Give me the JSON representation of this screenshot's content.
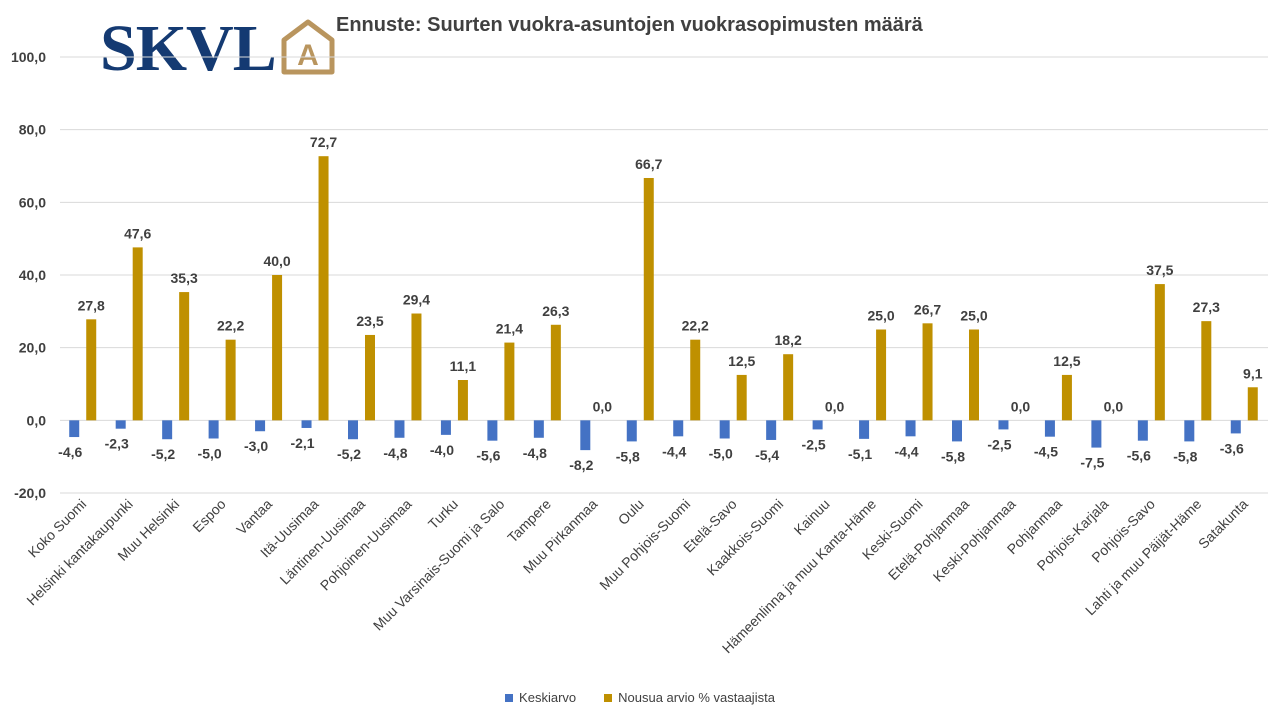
{
  "logo": {
    "text": "SKVL",
    "mark_letter": "A"
  },
  "colors": {
    "series1": "#4472c4",
    "series2": "#bf9000",
    "grid": "#d9d9d9",
    "logo_blue": "#143a72",
    "logo_gold": "#b9955e"
  },
  "chart_data": {
    "type": "bar",
    "title": "Ennuste: Suurten vuokra-asuntojen vuokrasopimusten määrä",
    "ylim": [
      -20,
      100
    ],
    "yticks": [
      -20,
      0,
      20,
      40,
      60,
      80,
      100
    ],
    "ytick_labels": [
      "-20,0",
      "0,0",
      "20,0",
      "40,0",
      "60,0",
      "80,0",
      "100,0"
    ],
    "legend_position": "bottom",
    "categories": [
      "Koko Suomi",
      "Helsinki kantakaupunki",
      "Muu Helsinki",
      "Espoo",
      "Vantaa",
      "Itä-Uusimaa",
      "Läntinen-Uusimaa",
      "Pohjoinen-Uusimaa",
      "Turku",
      "Muu Varsinais-Suomi ja Salo",
      "Tampere",
      "Muu Pirkanmaa",
      "Oulu",
      "Muu Pohjois-Suomi",
      "Etelä-Savo",
      "Kaakkois-Suomi",
      "Kainuu",
      "Hämeenlinna ja muu Kanta-Häme",
      "Keski-Suomi",
      "Etelä-Pohjanmaa",
      "Keski-Pohjanmaa",
      "Pohjanmaa",
      "Pohjois-Karjala",
      "Pohjois-Savo",
      "Lahti ja muu Päijät-Häme",
      "Satakunta"
    ],
    "series": [
      {
        "name": "Keskiarvo",
        "values": [
          -4.6,
          -2.3,
          -5.2,
          -5.0,
          -3.0,
          -2.1,
          -5.2,
          -4.8,
          -4.0,
          -5.6,
          -4.8,
          -8.2,
          -5.8,
          -4.4,
          -5.0,
          -5.4,
          -2.5,
          -5.1,
          -4.4,
          -5.8,
          -2.5,
          -4.5,
          -7.5,
          -5.6,
          -5.8,
          -3.6
        ],
        "labels": [
          "-4,6",
          "-2,3",
          "-5,2",
          "-5,0",
          "-3,0",
          "-2,1",
          "-5,2",
          "-4,8",
          "-4,0",
          "-5,6",
          "-4,8",
          "-8,2",
          "-5,8",
          "-4,4",
          "-5,0",
          "-5,4",
          "-2,5",
          "-5,1",
          "-4,4",
          "-5,8",
          "-2,5",
          "-4,5",
          "-7,5",
          "-5,6",
          "-5,8",
          "-3,6"
        ]
      },
      {
        "name": "Nousua arvio % vastaajista",
        "values": [
          27.8,
          47.6,
          35.3,
          22.2,
          40.0,
          72.7,
          23.5,
          29.4,
          11.1,
          21.4,
          26.3,
          0.0,
          66.7,
          22.2,
          12.5,
          18.2,
          0.0,
          25.0,
          26.7,
          25.0,
          0.0,
          12.5,
          0.0,
          37.5,
          27.3,
          9.1
        ],
        "labels": [
          "27,8",
          "47,6",
          "35,3",
          "22,2",
          "40,0",
          "72,7",
          "23,5",
          "29,4",
          "11,1",
          "21,4",
          "26,3",
          "0,0",
          "66,7",
          "22,2",
          "12,5",
          "18,2",
          "0,0",
          "25,0",
          "26,7",
          "25,0",
          "0,0",
          "12,5",
          "0,0",
          "37,5",
          "27,3",
          "9,1"
        ]
      }
    ]
  }
}
